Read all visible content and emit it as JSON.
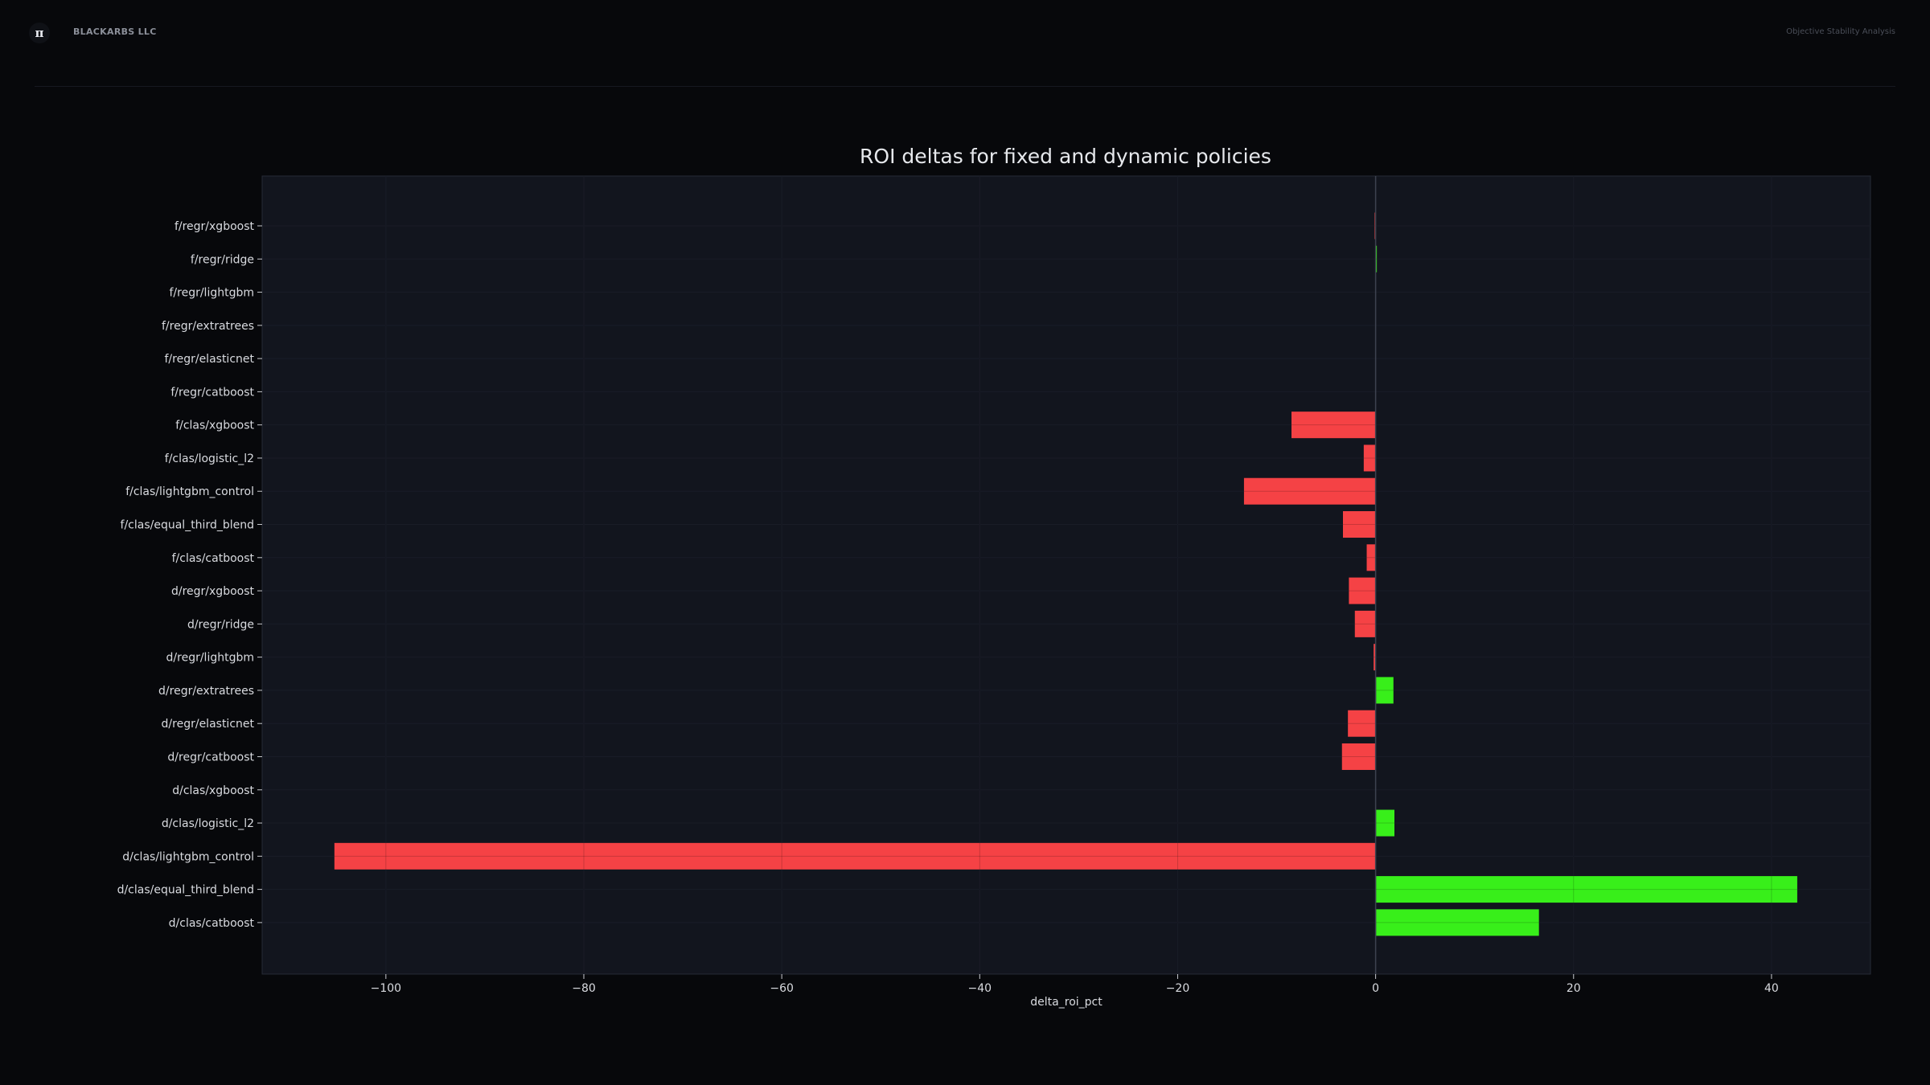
{
  "header": {
    "logo_glyph": "π",
    "brand": "BLACKARBS LLC",
    "page_tag": "Objective Stability Analysis"
  },
  "colors": {
    "negative": "#ff4547",
    "positive": "#3af91a",
    "plot_bg": "#12151e",
    "grid": "#1f2330",
    "text": "#d9dbe0"
  },
  "chart_data": {
    "type": "bar",
    "orientation": "horizontal",
    "title": "ROI deltas for fixed and dynamic policies",
    "xlabel": "delta_roi_pct",
    "ylabel": "",
    "xlim": [
      -112.5,
      50
    ],
    "xticks": [
      -100,
      -80,
      -60,
      -40,
      -20,
      0,
      20,
      40
    ],
    "xtick_labels": [
      "−100",
      "−80",
      "−60",
      "−40",
      "−20",
      "0",
      "20",
      "40"
    ],
    "grid": true,
    "categories": [
      "f/regr/xgboost",
      "f/regr/ridge",
      "f/regr/lightgbm",
      "f/regr/extratrees",
      "f/regr/elasticnet",
      "f/regr/catboost",
      "f/clas/xgboost",
      "f/clas/logistic_l2",
      "f/clas/lightgbm_control",
      "f/clas/equal_third_blend",
      "f/clas/catboost",
      "d/regr/xgboost",
      "d/regr/ridge",
      "d/regr/lightgbm",
      "d/regr/extratrees",
      "d/regr/elasticnet",
      "d/regr/catboost",
      "d/clas/xgboost",
      "d/clas/logistic_l2",
      "d/clas/lightgbm_control",
      "d/clas/equal_third_blend",
      "d/clas/catboost"
    ],
    "values": [
      -0.1,
      0.1,
      0,
      0,
      0,
      0,
      -8.5,
      -1.2,
      -13.3,
      -3.3,
      -0.9,
      -2.7,
      -2.1,
      -0.2,
      1.8,
      -2.8,
      -3.4,
      0,
      1.9,
      -105.2,
      42.6,
      16.5
    ]
  }
}
